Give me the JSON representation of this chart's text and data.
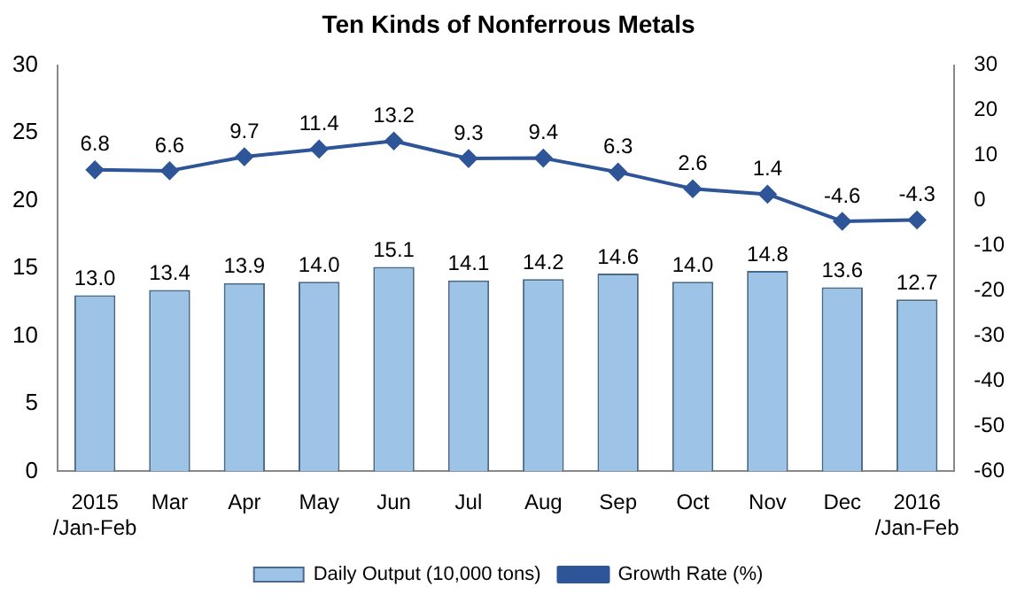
{
  "chart_data": {
    "type": "bar",
    "title": "Ten Kinds of Nonferrous Metals",
    "categories": [
      "2015\n/Jan-Feb",
      "Mar",
      "Apr",
      "May",
      "Jun",
      "Jul",
      "Aug",
      "Sep",
      "Oct",
      "Nov",
      "Dec",
      "2016\n/Jan-Feb"
    ],
    "series": [
      {
        "name": "Daily Output (10,000 tons)",
        "color": "#9dc3e6",
        "values": [
          13.0,
          13.4,
          13.9,
          14.0,
          15.1,
          14.1,
          14.2,
          14.6,
          14.0,
          14.8,
          13.6,
          12.7
        ],
        "value_labels": [
          "13.0",
          "13.4",
          "13.9",
          "14.0",
          "15.1",
          "14.1",
          "14.2",
          "14.6",
          "14.0",
          "14.8",
          "13.6",
          "12.7"
        ]
      },
      {
        "name": "Growth Rate (%)",
        "type": "line",
        "axis": "y2",
        "color": "#2e5597",
        "values": [
          6.8,
          6.6,
          9.7,
          11.4,
          13.2,
          9.3,
          9.4,
          6.3,
          2.6,
          1.4,
          -4.6,
          -4.3
        ],
        "value_labels": [
          "6.8",
          "6.6",
          "9.7",
          "11.4",
          "13.2",
          "9.3",
          "9.4",
          "6.3",
          "2.6",
          "1.4",
          "-4.6",
          "-4.3"
        ]
      }
    ],
    "ylim": [
      0,
      30
    ],
    "yticks": [
      0,
      5,
      10,
      15,
      20,
      25,
      30
    ],
    "y2lim": [
      -60,
      30
    ],
    "y2ticks": [
      -60,
      -50,
      -40,
      -30,
      -20,
      -10,
      0,
      10,
      20,
      30
    ],
    "legend": "bottom",
    "grid": false,
    "marker": "diamond"
  }
}
